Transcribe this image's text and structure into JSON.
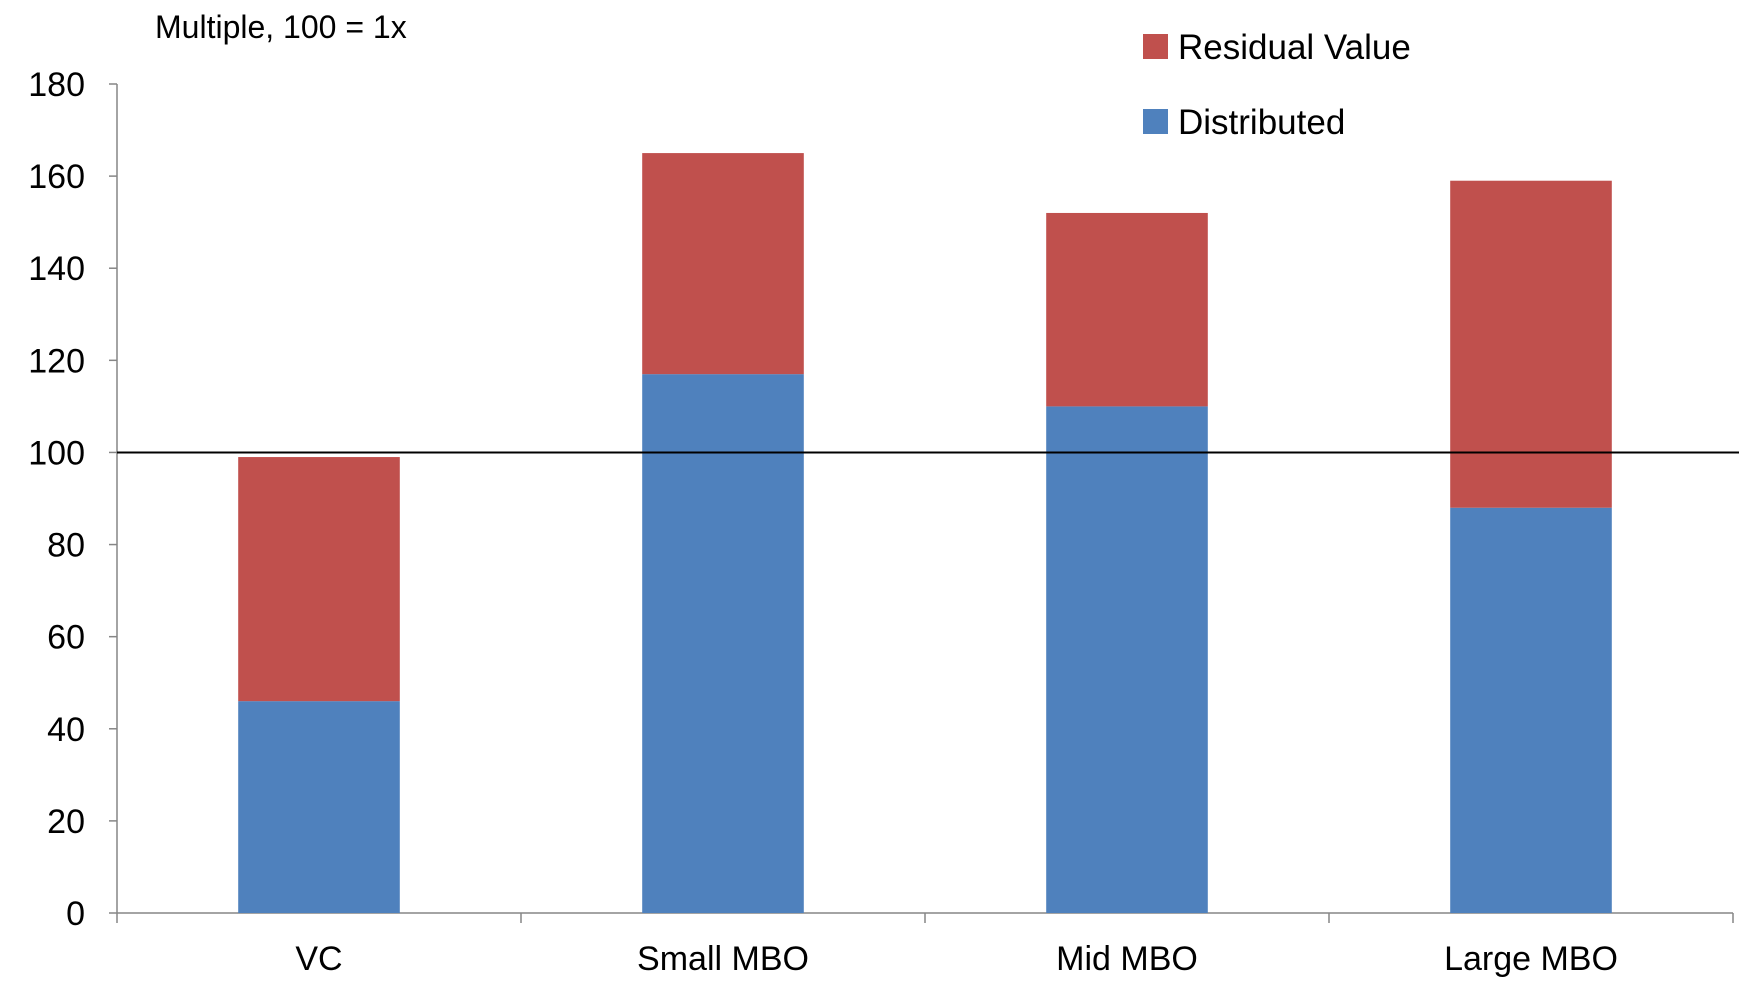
{
  "chart_data": {
    "type": "bar",
    "stacked": true,
    "title": "Multiple, 100 = 1x",
    "xlabel": "",
    "ylabel": "",
    "categories": [
      "VC",
      "Small MBO",
      "Mid MBO",
      "Large MBO"
    ],
    "series": [
      {
        "name": "Distributed",
        "values": [
          46,
          117,
          110,
          88
        ],
        "color": "#4f81bd"
      },
      {
        "name": "Residual Value",
        "values": [
          53,
          48,
          42,
          71
        ],
        "color": "#c0504d"
      }
    ],
    "ylim": [
      0,
      180
    ],
    "yticks": [
      0,
      20,
      40,
      60,
      80,
      100,
      120,
      140,
      160,
      180
    ],
    "reference_line": {
      "value": 100,
      "color": "#000000"
    },
    "grid": false,
    "legend": {
      "position": "top-right",
      "order": [
        "Residual Value",
        "Distributed"
      ]
    }
  }
}
